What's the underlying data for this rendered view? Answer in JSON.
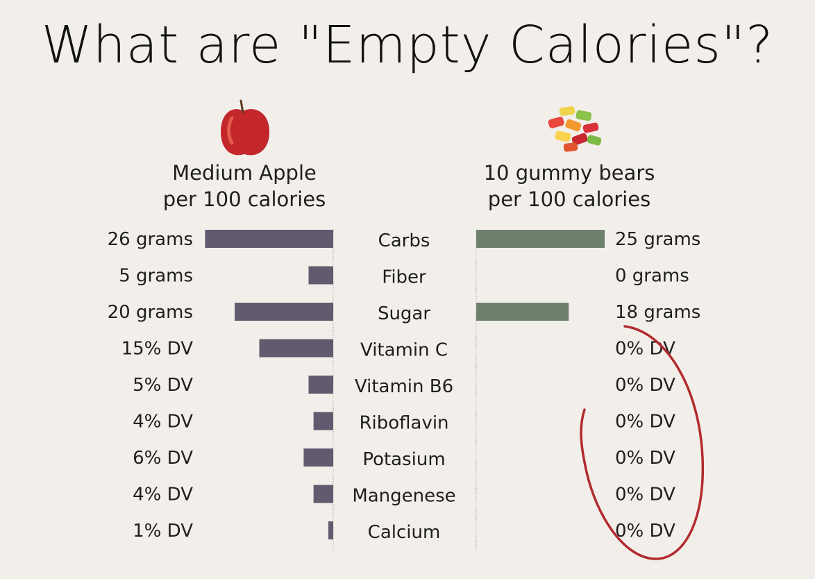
{
  "title": "What are \"Empty Calories\"?",
  "left": {
    "name": "Medium Apple",
    "basis": "per 100 calories",
    "color": "#625a6e"
  },
  "right": {
    "name": "10 gummy bears",
    "basis": "per 100 calories",
    "color": "#6f7f6d"
  },
  "accent": "#b22a2e",
  "chart_data": {
    "type": "bar",
    "categories": [
      "Carbs",
      "Fiber",
      "Sugar",
      "Vitamin C",
      "Vitamin B6",
      "Riboflavin",
      "Potasium",
      "Mangenese",
      "Calcium"
    ],
    "series": [
      {
        "name": "Medium Apple",
        "values": [
          26,
          5,
          20,
          15,
          5,
          4,
          6,
          4,
          1
        ],
        "labels": [
          "26 grams",
          "5 grams",
          "20 grams",
          "15% DV",
          "5% DV",
          "4% DV",
          "6% DV",
          "4% DV",
          "1% DV"
        ]
      },
      {
        "name": "10 gummy bears",
        "values": [
          25,
          0,
          18,
          0,
          0,
          0,
          0,
          0,
          0
        ],
        "labels": [
          "25 grams",
          "0 grams",
          "18 grams",
          "0% DV",
          "0% DV",
          "0% DV",
          "0% DV",
          "0% DV",
          "0% DV"
        ]
      }
    ]
  }
}
